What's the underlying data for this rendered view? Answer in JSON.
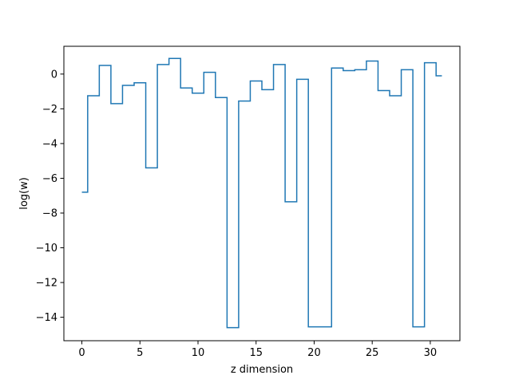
{
  "chart_data": {
    "type": "line",
    "drawstyle": "steps-mid",
    "title": "",
    "xlabel": "z dimension",
    "ylabel": "log(w)",
    "xlim": [
      -1.55,
      32.55
    ],
    "ylim": [
      -15.35,
      1.6
    ],
    "xticks": [
      0,
      5,
      10,
      15,
      20,
      25,
      30
    ],
    "yticks": [
      -14,
      -12,
      -10,
      -8,
      -6,
      -4,
      -2,
      0
    ],
    "grid": false,
    "legend": "none",
    "colors": {
      "line": "#1f77b4",
      "axes": "#000000",
      "background": "#ffffff"
    },
    "series": [
      {
        "x": [
          0,
          1,
          2,
          3,
          4,
          5,
          6,
          7,
          8,
          9,
          10,
          11,
          12,
          13,
          14,
          15,
          16,
          17,
          18,
          19,
          20,
          21,
          22,
          23,
          24,
          25,
          26,
          27,
          28,
          29,
          30,
          31
        ],
        "y": [
          -6.8,
          -1.25,
          0.5,
          -1.7,
          -0.65,
          -0.5,
          -5.4,
          0.55,
          0.9,
          -0.8,
          -1.1,
          0.1,
          -1.35,
          -14.6,
          -1.55,
          -0.4,
          -0.9,
          0.55,
          -7.35,
          -0.3,
          -14.55,
          -14.55,
          0.35,
          0.2,
          0.25,
          0.75,
          -0.95,
          -1.25,
          0.25,
          -14.55,
          0.65,
          -0.1
        ]
      }
    ]
  }
}
